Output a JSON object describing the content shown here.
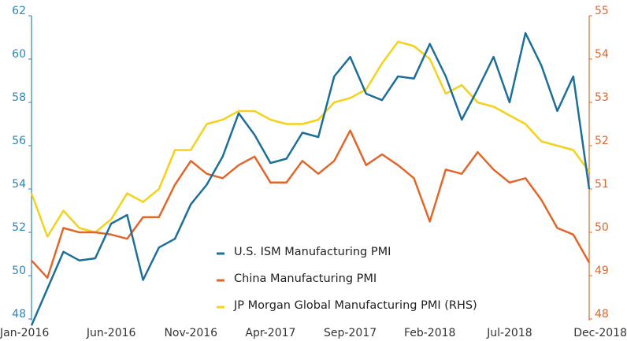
{
  "chart_data": {
    "type": "line",
    "categories": [
      "Jan-2016",
      null,
      null,
      null,
      null,
      "Jun-2016",
      null,
      null,
      null,
      null,
      "Nov-2016",
      null,
      null,
      null,
      null,
      "Apr-2017",
      null,
      null,
      null,
      null,
      "Sep-2017",
      null,
      null,
      null,
      null,
      "Feb-2018",
      null,
      null,
      null,
      null,
      "Jul-2018",
      null,
      null,
      null,
      null,
      "Dec-2018"
    ],
    "series": [
      {
        "name": "U.S. ISM Manufacturing PMI",
        "color": "#1d6f9a",
        "axis": "y",
        "values": [
          47.7,
          49.4,
          51.1,
          50.7,
          50.8,
          52.4,
          52.8,
          49.8,
          51.3,
          51.7,
          53.3,
          54.2,
          55.5,
          57.5,
          56.5,
          55.2,
          55.4,
          56.6,
          56.4,
          59.2,
          60.1,
          58.4,
          58.1,
          59.2,
          59.1,
          60.7,
          59.2,
          57.2,
          58.6,
          60.1,
          58.0,
          61.2,
          59.7,
          57.6,
          59.2,
          54.0
        ]
      },
      {
        "name": "China Manufacturing PMI",
        "color": "#e0662a",
        "axis": "y",
        "values": [
          50.7,
          49.9,
          52.2,
          52.0,
          52.0,
          51.9,
          51.7,
          52.7,
          52.7,
          54.2,
          55.3,
          54.7,
          54.5,
          55.1,
          55.5,
          54.3,
          54.3,
          55.3,
          54.7,
          55.3,
          56.7,
          55.1,
          55.6,
          55.1,
          54.5,
          52.5,
          54.9,
          54.7,
          55.7,
          54.9,
          54.3,
          54.5,
          53.5,
          52.2,
          51.9,
          50.6
        ]
      },
      {
        "name": "JP Morgan Global Manufacturing PMI (RHS)",
        "color": "#f5d11b",
        "axis": "y2",
        "values": [
          50.9,
          49.9,
          50.5,
          50.1,
          50.0,
          50.3,
          50.9,
          50.7,
          51.0,
          51.9,
          51.9,
          52.5,
          52.6,
          52.8,
          52.8,
          52.6,
          52.5,
          52.5,
          52.6,
          53.0,
          53.1,
          53.3,
          53.9,
          54.4,
          54.3,
          54.0,
          53.2,
          53.4,
          53.0,
          52.9,
          52.7,
          52.5,
          52.1,
          52.0,
          51.9,
          51.4
        ]
      }
    ],
    "ylim": [
      48,
      62
    ],
    "yticks": [
      48,
      50,
      52,
      54,
      56,
      58,
      60,
      62
    ],
    "y2lim": [
      48,
      55
    ],
    "y2ticks": [
      48,
      49,
      50,
      51,
      52,
      53,
      54,
      55
    ]
  }
}
